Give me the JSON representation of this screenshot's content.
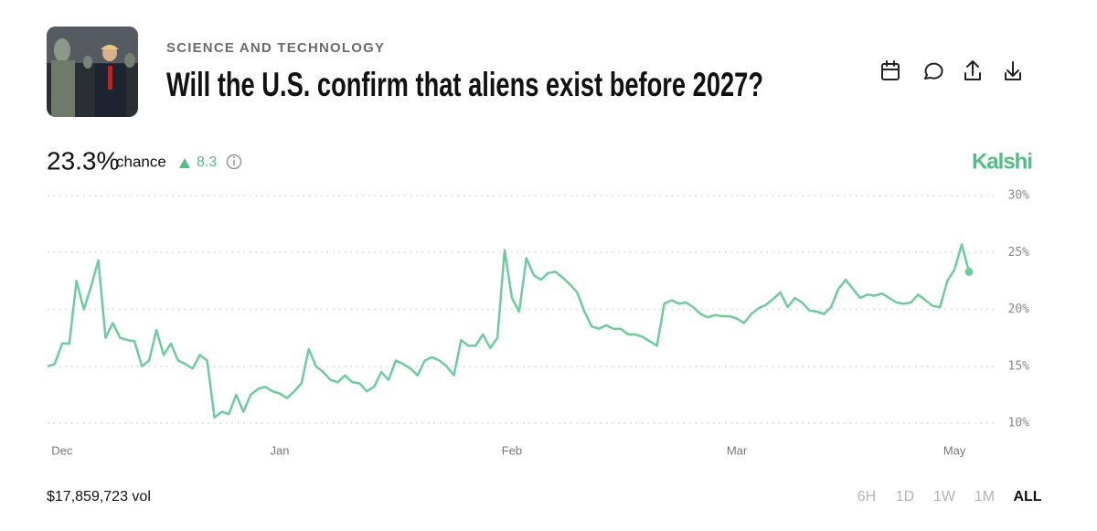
{
  "header": {
    "category": "SCIENCE AND TECHNOLOGY",
    "title": "Will the U.S. confirm that aliens exist before 2027?"
  },
  "summary": {
    "probability": "23.3%",
    "probability_word": "chance",
    "change": "8.3"
  },
  "brand": "Kalshi",
  "volume": "$17,859,723 vol",
  "ranges": [
    "6H",
    "1D",
    "1W",
    "1M",
    "ALL"
  ],
  "active_range": "ALL",
  "chart_data": {
    "type": "line",
    "categories": [
      null,
      null,
      "Dec",
      null,
      null,
      null,
      null,
      null,
      null,
      null,
      null,
      null,
      null,
      null,
      null,
      null,
      null,
      null,
      null,
      null,
      null,
      null,
      null,
      null,
      null,
      null,
      null,
      null,
      null,
      null,
      null,
      null,
      "Jan",
      null,
      null,
      null,
      null,
      null,
      null,
      null,
      null,
      null,
      null,
      null,
      null,
      null,
      null,
      null,
      null,
      null,
      null,
      null,
      null,
      null,
      null,
      null,
      null,
      null,
      null,
      null,
      null,
      null,
      null,
      null,
      "Feb",
      null,
      null,
      null,
      null,
      null,
      null,
      null,
      null,
      null,
      null,
      null,
      null,
      null,
      null,
      null,
      null,
      null,
      null,
      null,
      null,
      null,
      null,
      null,
      null,
      null,
      null,
      null,
      null,
      null,
      null,
      "Mar",
      null,
      null,
      null,
      null,
      null,
      null,
      null,
      null,
      null,
      null,
      null,
      null,
      null,
      null,
      null,
      null,
      null,
      null,
      null,
      null,
      null,
      null,
      null,
      null,
      null,
      null,
      null,
      null,
      null,
      "May",
      null,
      null
    ],
    "series": [
      {
        "color": "#6dcc9c",
        "values": [
          15,
          15.2,
          17,
          17,
          22.5,
          20,
          22,
          24.3,
          17.5,
          18.8,
          17.5,
          17.3,
          17.2,
          15,
          15.5,
          18.2,
          16,
          17,
          15.5,
          15.2,
          14.8,
          16,
          15.5,
          10.5,
          11,
          10.8,
          12.5,
          11,
          12.5,
          13,
          13.2,
          12.8,
          12.6,
          12.2,
          12.8,
          13.5,
          16.5,
          15,
          14.5,
          13.8,
          13.6,
          14.2,
          13.6,
          13.5,
          12.8,
          13.2,
          14.5,
          13.8,
          15.5,
          15.2,
          14.8,
          14.2,
          15.5,
          15.8,
          15.5,
          15,
          14.2,
          17.3,
          16.8,
          16.8,
          17.8,
          16.6,
          17.5,
          25.2,
          21,
          19.8,
          24.5,
          23,
          22.6,
          23.2,
          23.3,
          22.8,
          22.2,
          21.5,
          19.8,
          18.5,
          18.3,
          18.6,
          18.3,
          18.3,
          17.8,
          17.8,
          17.6,
          17.2,
          16.8,
          20.5,
          20.8,
          20.5,
          20.6,
          20.2,
          19.6,
          19.3,
          19.5,
          19.4,
          19.4,
          19.2,
          18.8,
          19.6,
          20.1,
          20.4,
          20.9,
          21.5,
          20.2,
          21,
          20.6,
          19.9,
          19.8,
          19.6,
          20.2,
          21.8,
          22.6,
          21.8,
          21,
          21.3,
          21.2,
          21.4,
          21,
          20.6,
          20.5,
          20.6,
          21.3,
          20.8,
          20.3,
          20.2,
          22.5,
          23.5,
          25.7,
          23.3
        ]
      }
    ],
    "ylim": [
      10,
      30
    ],
    "yticks": [
      {
        "value": 10,
        "label": "10%"
      },
      {
        "value": 15,
        "label": "15%"
      },
      {
        "value": 20,
        "label": "20%"
      },
      {
        "value": 25,
        "label": "25%"
      },
      {
        "value": 30,
        "label": "30%"
      }
    ],
    "grid": true,
    "end_marker": true
  }
}
